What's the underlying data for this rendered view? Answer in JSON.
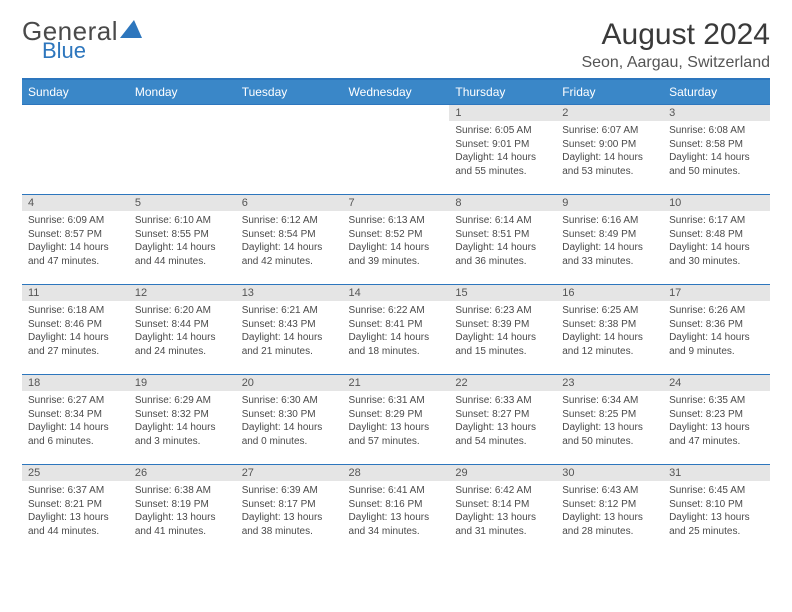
{
  "logo": {
    "text1": "General",
    "text2": "Blue"
  },
  "title": "August 2024",
  "location": "Seon, Aargau, Switzerland",
  "colors": {
    "header_bg": "#3a87c8",
    "border": "#2d76bd",
    "daynum_bg": "#e5e5e5",
    "text": "#4a4a4a",
    "logo_blue": "#2d76bd"
  },
  "weekdays": [
    "Sunday",
    "Monday",
    "Tuesday",
    "Wednesday",
    "Thursday",
    "Friday",
    "Saturday"
  ],
  "first_weekday": 4,
  "days": [
    {
      "n": 1,
      "sunrise": "6:05 AM",
      "sunset": "9:01 PM",
      "dl_h": 14,
      "dl_m": 55
    },
    {
      "n": 2,
      "sunrise": "6:07 AM",
      "sunset": "9:00 PM",
      "dl_h": 14,
      "dl_m": 53
    },
    {
      "n": 3,
      "sunrise": "6:08 AM",
      "sunset": "8:58 PM",
      "dl_h": 14,
      "dl_m": 50
    },
    {
      "n": 4,
      "sunrise": "6:09 AM",
      "sunset": "8:57 PM",
      "dl_h": 14,
      "dl_m": 47
    },
    {
      "n": 5,
      "sunrise": "6:10 AM",
      "sunset": "8:55 PM",
      "dl_h": 14,
      "dl_m": 44
    },
    {
      "n": 6,
      "sunrise": "6:12 AM",
      "sunset": "8:54 PM",
      "dl_h": 14,
      "dl_m": 42
    },
    {
      "n": 7,
      "sunrise": "6:13 AM",
      "sunset": "8:52 PM",
      "dl_h": 14,
      "dl_m": 39
    },
    {
      "n": 8,
      "sunrise": "6:14 AM",
      "sunset": "8:51 PM",
      "dl_h": 14,
      "dl_m": 36
    },
    {
      "n": 9,
      "sunrise": "6:16 AM",
      "sunset": "8:49 PM",
      "dl_h": 14,
      "dl_m": 33
    },
    {
      "n": 10,
      "sunrise": "6:17 AM",
      "sunset": "8:48 PM",
      "dl_h": 14,
      "dl_m": 30
    },
    {
      "n": 11,
      "sunrise": "6:18 AM",
      "sunset": "8:46 PM",
      "dl_h": 14,
      "dl_m": 27
    },
    {
      "n": 12,
      "sunrise": "6:20 AM",
      "sunset": "8:44 PM",
      "dl_h": 14,
      "dl_m": 24
    },
    {
      "n": 13,
      "sunrise": "6:21 AM",
      "sunset": "8:43 PM",
      "dl_h": 14,
      "dl_m": 21
    },
    {
      "n": 14,
      "sunrise": "6:22 AM",
      "sunset": "8:41 PM",
      "dl_h": 14,
      "dl_m": 18
    },
    {
      "n": 15,
      "sunrise": "6:23 AM",
      "sunset": "8:39 PM",
      "dl_h": 14,
      "dl_m": 15
    },
    {
      "n": 16,
      "sunrise": "6:25 AM",
      "sunset": "8:38 PM",
      "dl_h": 14,
      "dl_m": 12
    },
    {
      "n": 17,
      "sunrise": "6:26 AM",
      "sunset": "8:36 PM",
      "dl_h": 14,
      "dl_m": 9
    },
    {
      "n": 18,
      "sunrise": "6:27 AM",
      "sunset": "8:34 PM",
      "dl_h": 14,
      "dl_m": 6
    },
    {
      "n": 19,
      "sunrise": "6:29 AM",
      "sunset": "8:32 PM",
      "dl_h": 14,
      "dl_m": 3
    },
    {
      "n": 20,
      "sunrise": "6:30 AM",
      "sunset": "8:30 PM",
      "dl_h": 14,
      "dl_m": 0
    },
    {
      "n": 21,
      "sunrise": "6:31 AM",
      "sunset": "8:29 PM",
      "dl_h": 13,
      "dl_m": 57
    },
    {
      "n": 22,
      "sunrise": "6:33 AM",
      "sunset": "8:27 PM",
      "dl_h": 13,
      "dl_m": 54
    },
    {
      "n": 23,
      "sunrise": "6:34 AM",
      "sunset": "8:25 PM",
      "dl_h": 13,
      "dl_m": 50
    },
    {
      "n": 24,
      "sunrise": "6:35 AM",
      "sunset": "8:23 PM",
      "dl_h": 13,
      "dl_m": 47
    },
    {
      "n": 25,
      "sunrise": "6:37 AM",
      "sunset": "8:21 PM",
      "dl_h": 13,
      "dl_m": 44
    },
    {
      "n": 26,
      "sunrise": "6:38 AM",
      "sunset": "8:19 PM",
      "dl_h": 13,
      "dl_m": 41
    },
    {
      "n": 27,
      "sunrise": "6:39 AM",
      "sunset": "8:17 PM",
      "dl_h": 13,
      "dl_m": 38
    },
    {
      "n": 28,
      "sunrise": "6:41 AM",
      "sunset": "8:16 PM",
      "dl_h": 13,
      "dl_m": 34
    },
    {
      "n": 29,
      "sunrise": "6:42 AM",
      "sunset": "8:14 PM",
      "dl_h": 13,
      "dl_m": 31
    },
    {
      "n": 30,
      "sunrise": "6:43 AM",
      "sunset": "8:12 PM",
      "dl_h": 13,
      "dl_m": 28
    },
    {
      "n": 31,
      "sunrise": "6:45 AM",
      "sunset": "8:10 PM",
      "dl_h": 13,
      "dl_m": 25
    }
  ],
  "labels": {
    "sunrise": "Sunrise:",
    "sunset": "Sunset:",
    "daylight": "Daylight:",
    "hours": "hours",
    "and": "and",
    "minutes": "minutes."
  }
}
